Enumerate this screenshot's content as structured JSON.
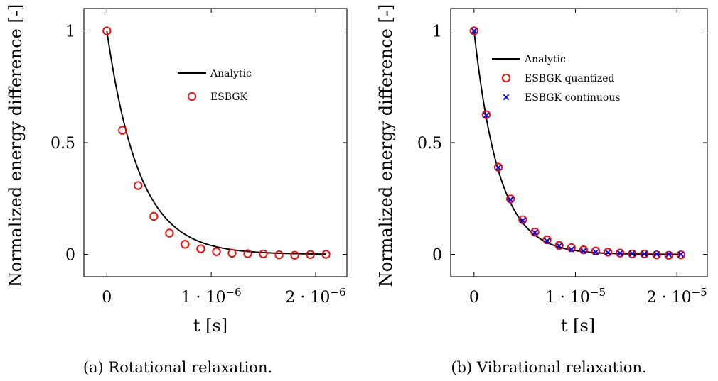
{
  "chart_data": [
    {
      "type": "scatter",
      "caption": "(a) Rotational relaxation.",
      "xlabel": "t [s]",
      "ylabel": "Normalized energy difference [-]",
      "xlim": [
        -2.2e-07,
        2.3e-06
      ],
      "ylim": [
        -0.1,
        1.1
      ],
      "xticks": [
        {
          "value": 0,
          "label": "0"
        },
        {
          "value": 1e-06,
          "label": "1 · 10",
          "exp": "−6"
        },
        {
          "value": 2e-06,
          "label": "2 · 10",
          "exp": "−6"
        }
      ],
      "yticks": [
        {
          "value": 0,
          "label": "0"
        },
        {
          "value": 0.5,
          "label": "0.5"
        },
        {
          "value": 1,
          "label": "1"
        }
      ],
      "grid": false,
      "legend_position": "center-right",
      "analytic": {
        "name": "Analytic",
        "color": "#000000",
        "x_max": 2.1e-06,
        "decay_time": 3.1e-07
      },
      "series": [
        {
          "name": "ESBGK",
          "marker": "circle",
          "color": "#ff0000",
          "x": [
            0,
            1.5e-07,
            3e-07,
            4.5e-07,
            6e-07,
            7.5e-07,
            9e-07,
            1.05e-06,
            1.2e-06,
            1.35e-06,
            1.5e-06,
            1.65e-06,
            1.8e-06,
            1.95e-06,
            2.1e-06
          ],
          "y": [
            1.0,
            0.555,
            0.308,
            0.17,
            0.095,
            0.045,
            0.025,
            0.012,
            0.005,
            0.003,
            0.002,
            -0.002,
            -0.004,
            -0.001,
            0.0
          ]
        }
      ]
    },
    {
      "type": "scatter",
      "caption": "(b) Vibrational relaxation.",
      "xlabel": "t [s]",
      "ylabel": "Normalized energy difference [-]",
      "xlim": [
        -2.3e-06,
        2.3e-05
      ],
      "ylim": [
        -0.1,
        1.1
      ],
      "xticks": [
        {
          "value": 0,
          "label": "0"
        },
        {
          "value": 1e-05,
          "label": "1 · 10",
          "exp": "−5"
        },
        {
          "value": 2e-05,
          "label": "2 · 10",
          "exp": "−5"
        }
      ],
      "yticks": [
        {
          "value": 0,
          "label": "0"
        },
        {
          "value": 0.5,
          "label": "0.5"
        },
        {
          "value": 1,
          "label": "1"
        }
      ],
      "grid": false,
      "legend_position": "top-right",
      "analytic": {
        "name": "Analytic",
        "color": "#000000",
        "x_max": 2.05e-05,
        "decay_time": 2.45e-06
      },
      "series": [
        {
          "name": "ESBGK quantized",
          "marker": "circle",
          "color": "#ff0000",
          "x": [
            0,
            1.2e-06,
            2.4e-06,
            3.6e-06,
            4.8e-06,
            6e-06,
            7.2e-06,
            8.4e-06,
            9.6e-06,
            1.08e-05,
            1.2e-05,
            1.32e-05,
            1.44e-05,
            1.56e-05,
            1.68e-05,
            1.8e-05,
            1.92e-05,
            2.04e-05
          ],
          "y": [
            1.0,
            0.625,
            0.39,
            0.248,
            0.155,
            0.1,
            0.065,
            0.04,
            0.03,
            0.02,
            0.015,
            0.01,
            0.006,
            0.002,
            0.002,
            -0.002,
            -0.004,
            -0.002
          ]
        },
        {
          "name": "ESBGK continuous",
          "marker": "x",
          "color": "#0000ff",
          "x": [
            0,
            1.2e-06,
            2.4e-06,
            3.6e-06,
            4.8e-06,
            6e-06,
            7.2e-06,
            8.4e-06,
            9.6e-06,
            1.08e-05,
            1.2e-05,
            1.32e-05,
            1.44e-05,
            1.56e-05,
            1.68e-05,
            1.8e-05,
            1.92e-05,
            2.04e-05
          ],
          "y": [
            1.0,
            0.622,
            0.388,
            0.245,
            0.152,
            0.097,
            0.06,
            0.038,
            0.022,
            0.015,
            0.01,
            0.008,
            0.005,
            0.003,
            0.002,
            0.001,
            0.0,
            0.0
          ]
        }
      ]
    }
  ]
}
